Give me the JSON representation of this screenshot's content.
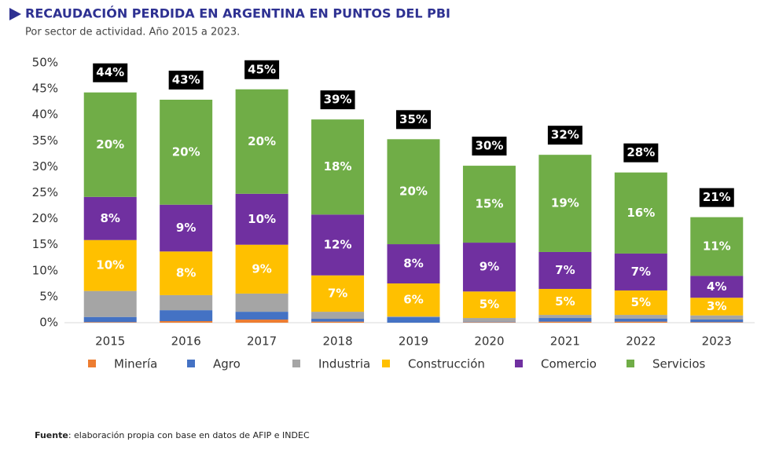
{
  "chart_data": {
    "type": "stacked_bar",
    "title": "RECAUDACIÓN PERDIDA EN ARGENTINA EN PUNTOS DEL PBI",
    "subtitle": "Por sector de actividad. Año 2015 a 2023.",
    "source_label": "Fuente",
    "source_text": ": elaboración propia con base en datos de AFIP e INDEC",
    "categories": [
      "2015",
      "2016",
      "2017",
      "2018",
      "2019",
      "2020",
      "2021",
      "2022",
      "2023"
    ],
    "total_labels": [
      "44%",
      "43%",
      "45%",
      "39%",
      "35%",
      "30%",
      "32%",
      "28%",
      "21%"
    ],
    "ylim": [
      0,
      50
    ],
    "yticks": [
      {
        "value": 0,
        "label": "0%"
      },
      {
        "value": 5,
        "label": "5%"
      },
      {
        "value": 10,
        "label": "10%"
      },
      {
        "value": 15,
        "label": "15%"
      },
      {
        "value": 20,
        "label": "20%"
      },
      {
        "value": 25,
        "label": "25%"
      },
      {
        "value": 30,
        "label": "30%"
      },
      {
        "value": 35,
        "label": "35%"
      },
      {
        "value": 40,
        "label": "40%"
      },
      {
        "value": 45,
        "label": "45%"
      },
      {
        "value": 50,
        "label": "50%"
      }
    ],
    "series": [
      {
        "name": "Minería",
        "color": "#ed7d31",
        "values": [
          0.1,
          0.3,
          0.6,
          0.2,
          0.0,
          0.1,
          0.2,
          0.2,
          0.1
        ]
      },
      {
        "name": "Agro",
        "color": "#4472c4",
        "values": [
          1.0,
          2.1,
          1.5,
          0.55,
          1.05,
          0.1,
          0.7,
          0.6,
          0.5
        ]
      },
      {
        "name": "Industria",
        "color": "#a5a5a5",
        "values": [
          5.0,
          2.9,
          3.5,
          1.35,
          0.15,
          0.7,
          0.6,
          0.7,
          0.8
        ]
      },
      {
        "name": "Construcción",
        "color": "#ffc000",
        "values": [
          9.8,
          8.4,
          9.4,
          7.0,
          6.35,
          5.1,
          5.0,
          4.7,
          3.4
        ],
        "value_labels": [
          "10%",
          "8%",
          "9%",
          "7%",
          "6%",
          "5%",
          "5%",
          "5%",
          "3%"
        ]
      },
      {
        "name": "Comercio",
        "color": "#7030a0",
        "values": [
          8.3,
          9.0,
          9.8,
          11.7,
          7.55,
          9.4,
          7.1,
          7.1,
          4.2
        ],
        "value_labels": [
          "8%",
          "9%",
          "10%",
          "12%",
          "8%",
          "9%",
          "7%",
          "7%",
          "4%"
        ]
      },
      {
        "name": "Servicios",
        "color": "#70ad47",
        "values": [
          20.1,
          20.2,
          20.1,
          18.3,
          20.2,
          14.8,
          18.7,
          15.6,
          11.3
        ],
        "value_labels": [
          "20%",
          "20%",
          "20%",
          "18%",
          "20%",
          "15%",
          "19%",
          "16%",
          "11%"
        ]
      }
    ]
  }
}
